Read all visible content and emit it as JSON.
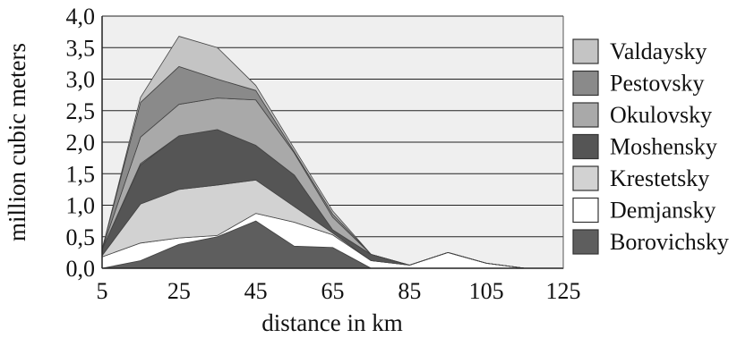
{
  "chart_data": {
    "type": "area",
    "stacked": true,
    "title": "",
    "xlabel": "distance in km",
    "ylabel": "million cubic meters",
    "x": [
      5,
      15,
      25,
      35,
      45,
      55,
      65,
      75,
      85,
      95,
      105,
      115,
      125
    ],
    "xticks": [
      "5",
      "25",
      "45",
      "65",
      "85",
      "105",
      "125"
    ],
    "xtick_values": [
      5,
      25,
      45,
      65,
      85,
      105,
      125
    ],
    "yticks": [
      "0,0",
      "0,5",
      "1,0",
      "1,5",
      "2,0",
      "2,5",
      "3,0",
      "3,5",
      "4,0"
    ],
    "ytick_values": [
      0,
      0.5,
      1.0,
      1.5,
      2.0,
      2.5,
      3.0,
      3.5,
      4.0
    ],
    "xlim": [
      5,
      125
    ],
    "ylim": [
      0,
      4
    ],
    "grid": "horizontal",
    "plot_background": "#efefef",
    "legend_position": "right",
    "series": [
      {
        "name": "Borovichsky",
        "color": "#5e5e5e",
        "values": [
          0,
          0.12,
          0.38,
          0.5,
          0.75,
          0.35,
          0.33,
          0,
          0,
          0,
          0,
          0,
          0
        ]
      },
      {
        "name": "Demjansky",
        "color": "#ffffff",
        "values": [
          0.18,
          0.28,
          0.1,
          0.02,
          0.12,
          0.38,
          0.2,
          0.12,
          0.05,
          0.25,
          0.08,
          0,
          0
        ]
      },
      {
        "name": "Krestetsky",
        "color": "#d2d2d2",
        "values": [
          0.02,
          0.62,
          0.77,
          0.8,
          0.53,
          0.25,
          0.03,
          0,
          0,
          0,
          0,
          0,
          0
        ]
      },
      {
        "name": "Moshensky",
        "color": "#555555",
        "values": [
          0.1,
          0.62,
          0.85,
          0.88,
          0.55,
          0.5,
          0.05,
          0.1,
          0,
          0,
          0,
          0,
          0
        ]
      },
      {
        "name": "Krestetsky",
        "color": "#d2d2d2",
        "values": [
          0,
          0.02,
          0,
          0,
          0,
          0,
          0,
          0,
          0,
          0,
          0,
          0,
          0
        ]
      },
      {
        "name": "Okulovsky",
        "color": "#a9a9a9",
        "values": [
          0,
          0.42,
          0.5,
          0.5,
          0.72,
          0.35,
          0.2,
          0,
          0,
          0,
          0,
          0,
          0
        ]
      },
      {
        "name": "Pestovsky",
        "color": "#8a8a8a",
        "values": [
          0,
          0.55,
          0.6,
          0.3,
          0.15,
          0.02,
          0.05,
          0,
          0,
          0,
          0,
          0,
          0
        ]
      },
      {
        "name": "Valdaysky",
        "color": "#c4c4c4",
        "values": [
          0,
          0.08,
          0.48,
          0.5,
          0.08,
          0.05,
          0.05,
          0,
          0,
          0,
          0,
          0,
          0
        ]
      }
    ],
    "legend": [
      {
        "name": "Valdaysky",
        "color": "#c4c4c4"
      },
      {
        "name": "Pestovsky",
        "color": "#8a8a8a"
      },
      {
        "name": "Okulovsky",
        "color": "#a9a9a9"
      },
      {
        "name": "Moshensky",
        "color": "#555555"
      },
      {
        "name": "Krestetsky",
        "color": "#d2d2d2"
      },
      {
        "name": "Demjansky",
        "color": "#ffffff"
      },
      {
        "name": "Borovichsky",
        "color": "#5e5e5e"
      }
    ]
  }
}
